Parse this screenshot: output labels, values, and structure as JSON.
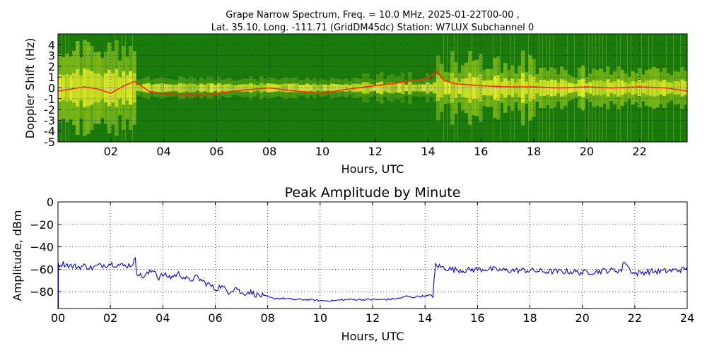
{
  "figure": {
    "title_line1": "Grape Narrow Spectrum, Freq. = 10.0 MHz, 2025-01-22T00-00 ,",
    "title_line2": "Lat.  35.10, Long. -111.71 (GridDM45dc) Station: W7LUX Subchannel 0"
  },
  "chart_data": [
    {
      "type": "heatmap",
      "xlabel": "Hours, UTC",
      "ylabel": "Doppler Shift (Hz)",
      "xlim": [
        0,
        23.8
      ],
      "ylim": [
        -5,
        5
      ],
      "xticks": [
        2,
        4,
        6,
        8,
        10,
        12,
        14,
        16,
        18,
        20,
        22
      ],
      "xtick_labels": [
        "02",
        "04",
        "06",
        "08",
        "10",
        "12",
        "14",
        "16",
        "18",
        "20",
        "22"
      ],
      "yticks": [
        4,
        3,
        2,
        1,
        0,
        -1,
        -2,
        -3,
        -4,
        -5
      ],
      "ytick_labels": [
        "4",
        "3",
        "2",
        "1",
        "0",
        "-1",
        "-2",
        "-3",
        "-4",
        "-5"
      ],
      "grid": true,
      "colors": {
        "background": "#1a7a0b",
        "mid": "#c8e51e",
        "high": "#ffff33",
        "peak": "#ff2a00"
      },
      "doppler_peak_trace": {
        "x": [
          0,
          1,
          1.5,
          2,
          2.5,
          2.9,
          3.5,
          4.5,
          5.5,
          6,
          7,
          8,
          9,
          10,
          11,
          12,
          13,
          14,
          14.3,
          14.6,
          15,
          16,
          17,
          18,
          19,
          20,
          21,
          22,
          23,
          23.8
        ],
        "y": [
          -0.3,
          0.1,
          -0.1,
          -0.5,
          0.2,
          0.6,
          -0.4,
          -0.6,
          -0.7,
          -0.5,
          -0.2,
          0.0,
          -0.3,
          -0.5,
          -0.1,
          0.2,
          0.5,
          0.9,
          1.6,
          0.7,
          0.4,
          0.2,
          0.1,
          0.1,
          0.0,
          0.1,
          0.0,
          0.1,
          0.0,
          -0.3
        ]
      }
    },
    {
      "type": "line",
      "title": "Peak Amplitude by Minute",
      "xlabel": "Hours, UTC",
      "ylabel": "Amplitude, dBm",
      "xlim": [
        0,
        24
      ],
      "ylim": [
        -95,
        0
      ],
      "xticks": [
        0,
        2,
        4,
        6,
        8,
        10,
        12,
        14,
        16,
        18,
        20,
        22,
        24
      ],
      "xtick_labels": [
        "00",
        "02",
        "04",
        "06",
        "08",
        "10",
        "12",
        "14",
        "16",
        "18",
        "20",
        "22",
        "24"
      ],
      "yticks": [
        0,
        -20,
        -40,
        -60,
        -80
      ],
      "ytick_labels": [
        "0",
        "−20",
        "−40",
        "−60",
        "−80"
      ],
      "grid": true,
      "line_color": "#0000ff",
      "series": [
        {
          "x": [
            0,
            0.2,
            0.5,
            0.8,
            1.0,
            1.3,
            1.5,
            1.8,
            2.0,
            2.3,
            2.5,
            2.8,
            2.95,
            3.0,
            3.2,
            3.5,
            3.7,
            3.8,
            4.0,
            4.3,
            4.6,
            5.0,
            5.3,
            5.6,
            5.8,
            6.0,
            6.2,
            6.5,
            6.8,
            7.0,
            7.3,
            7.6,
            7.9,
            8.2,
            8.6,
            9.0,
            9.5,
            10.0,
            10.5,
            11.0,
            11.5,
            12.0,
            12.5,
            13.0,
            13.3,
            13.5,
            13.8,
            14.0,
            14.3,
            14.35,
            14.4,
            14.6,
            15.0,
            15.5,
            16.0,
            16.5,
            17.0,
            17.5,
            18.0,
            18.5,
            19.0,
            19.5,
            20.0,
            20.5,
            21.0,
            21.5,
            21.6,
            21.8,
            22.0,
            22.5,
            23.0,
            23.5,
            23.9,
            24.0
          ],
          "y": [
            -56,
            -55,
            -57,
            -58,
            -57,
            -59,
            -57,
            -56,
            -55,
            -56,
            -57,
            -56,
            -52,
            -62,
            -67,
            -63,
            -60,
            -68,
            -65,
            -67,
            -64,
            -70,
            -67,
            -72,
            -74,
            -78,
            -75,
            -80,
            -76,
            -82,
            -80,
            -83,
            -84,
            -86,
            -86,
            -87,
            -87,
            -88,
            -88,
            -87,
            -87,
            -87,
            -87,
            -86,
            -84,
            -85,
            -84,
            -84,
            -83,
            -70,
            -56,
            -58,
            -60,
            -61,
            -60,
            -60,
            -61,
            -61,
            -61,
            -62,
            -62,
            -62,
            -63,
            -62,
            -61,
            -61,
            -52,
            -60,
            -64,
            -62,
            -62,
            -61,
            -60,
            -58
          ]
        }
      ]
    }
  ]
}
